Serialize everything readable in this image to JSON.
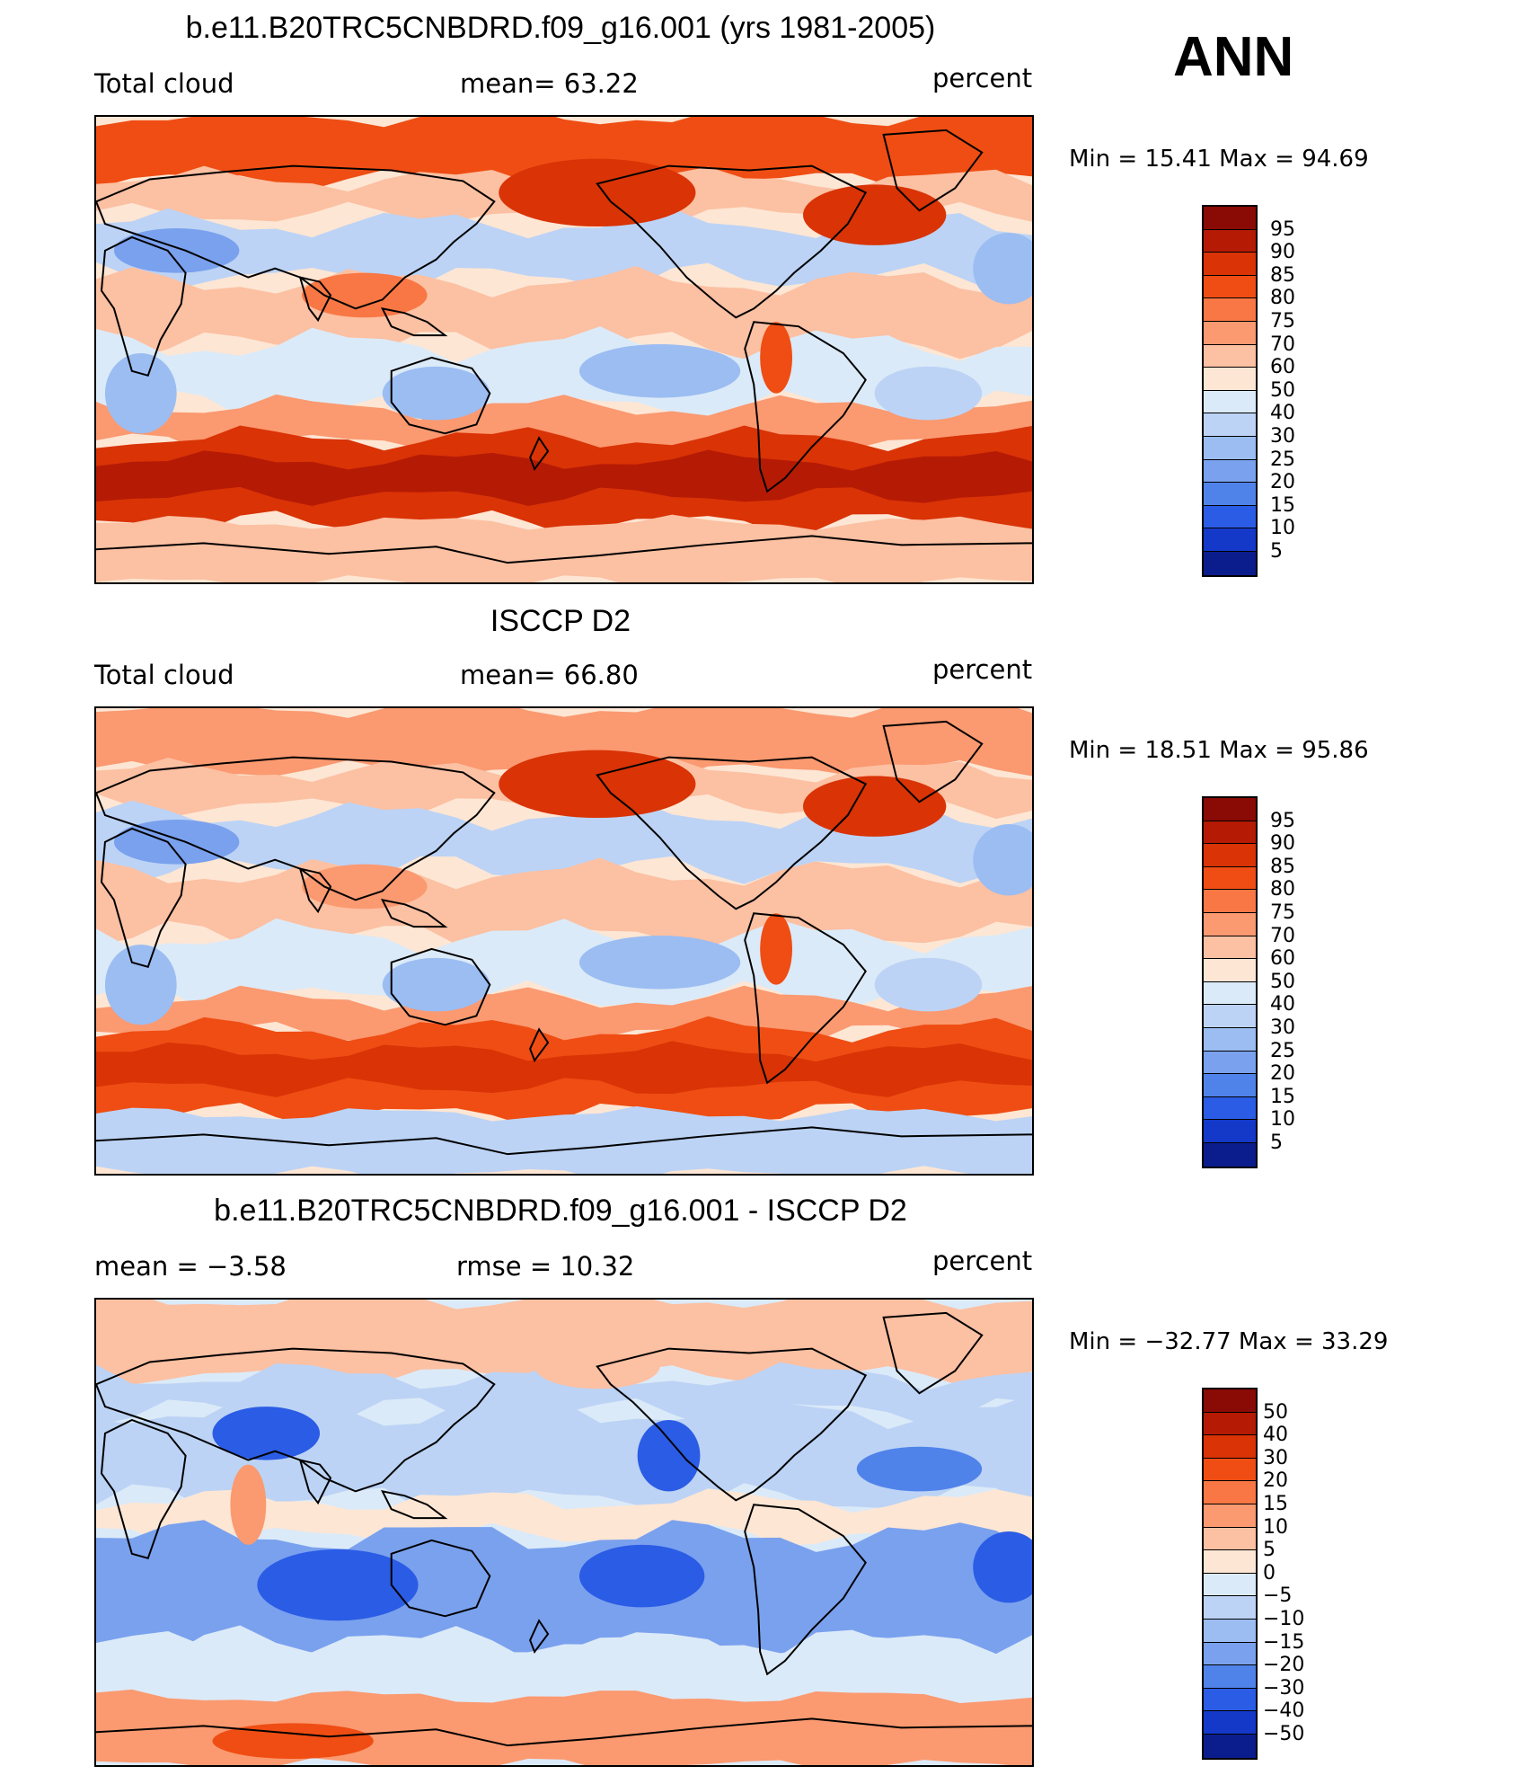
{
  "season": "ANN",
  "units": "percent",
  "panels": [
    {
      "title": "b.e11.B20TRC5CNBDRD.f09_g16.001 (yrs 1981-2005)",
      "left_label": "Total cloud",
      "center_label": "mean=   63.22",
      "right_label": "percent",
      "min_max": "Min =   15.41  Max =   94.69",
      "levels": [
        "95",
        "90",
        "85",
        "80",
        "75",
        "70",
        "60",
        "50",
        "40",
        "30",
        "25",
        "20",
        "15",
        "10",
        "5"
      ],
      "colors": [
        "#8a0a05",
        "#b51a05",
        "#d93306",
        "#ef4d13",
        "#f87744",
        "#fb9970",
        "#fcc0a2",
        "#fde6d4",
        "#dbeaf8",
        "#bcd3f5",
        "#9bbdf2",
        "#7aa1ee",
        "#5083ea",
        "#2b5ce5",
        "#1439c9",
        "#0b1d8c"
      ],
      "map_style": "model"
    },
    {
      "title": "ISCCP D2",
      "left_label": "Total cloud",
      "center_label": "mean=   66.80",
      "right_label": "percent",
      "min_max": "Min =   18.51  Max =   95.86",
      "levels": [
        "95",
        "90",
        "85",
        "80",
        "75",
        "70",
        "60",
        "50",
        "40",
        "30",
        "25",
        "20",
        "15",
        "10",
        "5"
      ],
      "colors": [
        "#8a0a05",
        "#b51a05",
        "#d93306",
        "#ef4d13",
        "#f87744",
        "#fb9970",
        "#fcc0a2",
        "#fde6d4",
        "#dbeaf8",
        "#bcd3f5",
        "#9bbdf2",
        "#7aa1ee",
        "#5083ea",
        "#2b5ce5",
        "#1439c9",
        "#0b1d8c"
      ],
      "map_style": "obs"
    },
    {
      "title": "b.e11.B20TRC5CNBDRD.f09_g16.001 - ISCCP D2",
      "left_label": "mean =   −3.58",
      "center_label": "rmse =   10.32",
      "right_label": "percent",
      "min_max": "Min = −32.77  Max =   33.29",
      "levels": [
        "50",
        "40",
        "30",
        "20",
        "15",
        "10",
        "5",
        "0",
        "−5",
        "−10",
        "−15",
        "−20",
        "−30",
        "−40",
        "−50"
      ],
      "colors": [
        "#8a0a05",
        "#b51a05",
        "#d93306",
        "#ef4d13",
        "#f87744",
        "#fb9970",
        "#fcc0a2",
        "#fde6d4",
        "#dbeaf8",
        "#bcd3f5",
        "#9bbdf2",
        "#7aa1ee",
        "#5083ea",
        "#2b5ce5",
        "#1439c9",
        "#0b1d8c"
      ],
      "map_style": "diff"
    }
  ]
}
